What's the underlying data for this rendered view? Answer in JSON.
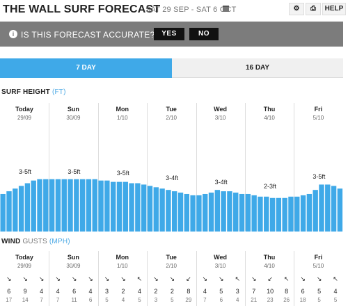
{
  "header": {
    "title": "THE WALL SURF FORECAST",
    "date_range": "SAT 29 SEP - SAT 6 OCT",
    "help_label": "HELP"
  },
  "banner": {
    "question": "IS THIS FORECAST ACCURATE?",
    "yes_label": "YES",
    "no_label": "NO"
  },
  "tabs": [
    {
      "label": "7 DAY",
      "active": true
    },
    {
      "label": "16 DAY",
      "active": false
    }
  ],
  "surf": {
    "title": "SURF HEIGHT",
    "unit": "(FT)",
    "color": "#3fa9e8"
  },
  "wind": {
    "title": "WIND",
    "gusts_label": "GUSTS",
    "unit": "(MPH)"
  },
  "days": [
    {
      "name": "Today",
      "date": "29/09",
      "height_label": "3-5ft"
    },
    {
      "name": "Sun",
      "date": "30/09",
      "height_label": "3-5ft"
    },
    {
      "name": "Mon",
      "date": "1/10",
      "height_label": "3-5ft"
    },
    {
      "name": "Tue",
      "date": "2/10",
      "height_label": "3-4ft"
    },
    {
      "name": "Wed",
      "date": "3/10",
      "height_label": "3-4ft"
    },
    {
      "name": "Thu",
      "date": "4/10",
      "height_label": "2-3ft"
    },
    {
      "name": "Fri",
      "date": "5/10",
      "height_label": "3-5ft"
    }
  ],
  "chart_data": {
    "type": "bar",
    "title": "SURF HEIGHT",
    "ylabel": "(FT)",
    "ylim": [
      0,
      10
    ],
    "values": [
      2.8,
      3.0,
      3.2,
      3.4,
      3.6,
      3.8,
      3.9,
      3.9,
      3.9,
      3.9,
      3.9,
      3.9,
      3.9,
      3.9,
      3.9,
      3.9,
      3.8,
      3.8,
      3.7,
      3.7,
      3.7,
      3.6,
      3.6,
      3.5,
      3.4,
      3.3,
      3.2,
      3.1,
      3.0,
      2.9,
      2.8,
      2.7,
      2.7,
      2.8,
      2.9,
      3.1,
      3.0,
      3.0,
      2.9,
      2.8,
      2.8,
      2.7,
      2.6,
      2.6,
      2.5,
      2.5,
      2.5,
      2.6,
      2.6,
      2.7,
      2.8,
      3.1,
      3.5,
      3.5,
      3.4,
      3.2
    ]
  },
  "wind_data": [
    {
      "arrow": "↘",
      "speed": "6",
      "gust": "17"
    },
    {
      "arrow": "↘",
      "speed": "9",
      "gust": "14"
    },
    {
      "arrow": "↘",
      "speed": "4",
      "gust": "7"
    },
    {
      "arrow": "↘",
      "speed": "4",
      "gust": "7"
    },
    {
      "arrow": "↘",
      "speed": "6",
      "gust": "11"
    },
    {
      "arrow": "↘",
      "speed": "4",
      "gust": "6"
    },
    {
      "arrow": "↘",
      "speed": "3",
      "gust": "5"
    },
    {
      "arrow": "↘",
      "speed": "2",
      "gust": "4"
    },
    {
      "arrow": "↖",
      "speed": "4",
      "gust": "5"
    },
    {
      "arrow": "↘",
      "speed": "2",
      "gust": "3"
    },
    {
      "arrow": "↘",
      "speed": "2",
      "gust": "5"
    },
    {
      "arrow": "↙",
      "speed": "8",
      "gust": "29"
    },
    {
      "arrow": "↘",
      "speed": "4",
      "gust": "7"
    },
    {
      "arrow": "↘",
      "speed": "5",
      "gust": "6"
    },
    {
      "arrow": "↖",
      "speed": "3",
      "gust": "4"
    },
    {
      "arrow": "↘",
      "speed": "7",
      "gust": "21"
    },
    {
      "arrow": "↙",
      "speed": "10",
      "gust": "23"
    },
    {
      "arrow": "↖",
      "speed": "8",
      "gust": "26"
    },
    {
      "arrow": "↘",
      "speed": "6",
      "gust": "18"
    },
    {
      "arrow": "↘",
      "speed": "5",
      "gust": "5"
    },
    {
      "arrow": "↖",
      "speed": "4",
      "gust": "5"
    }
  ]
}
